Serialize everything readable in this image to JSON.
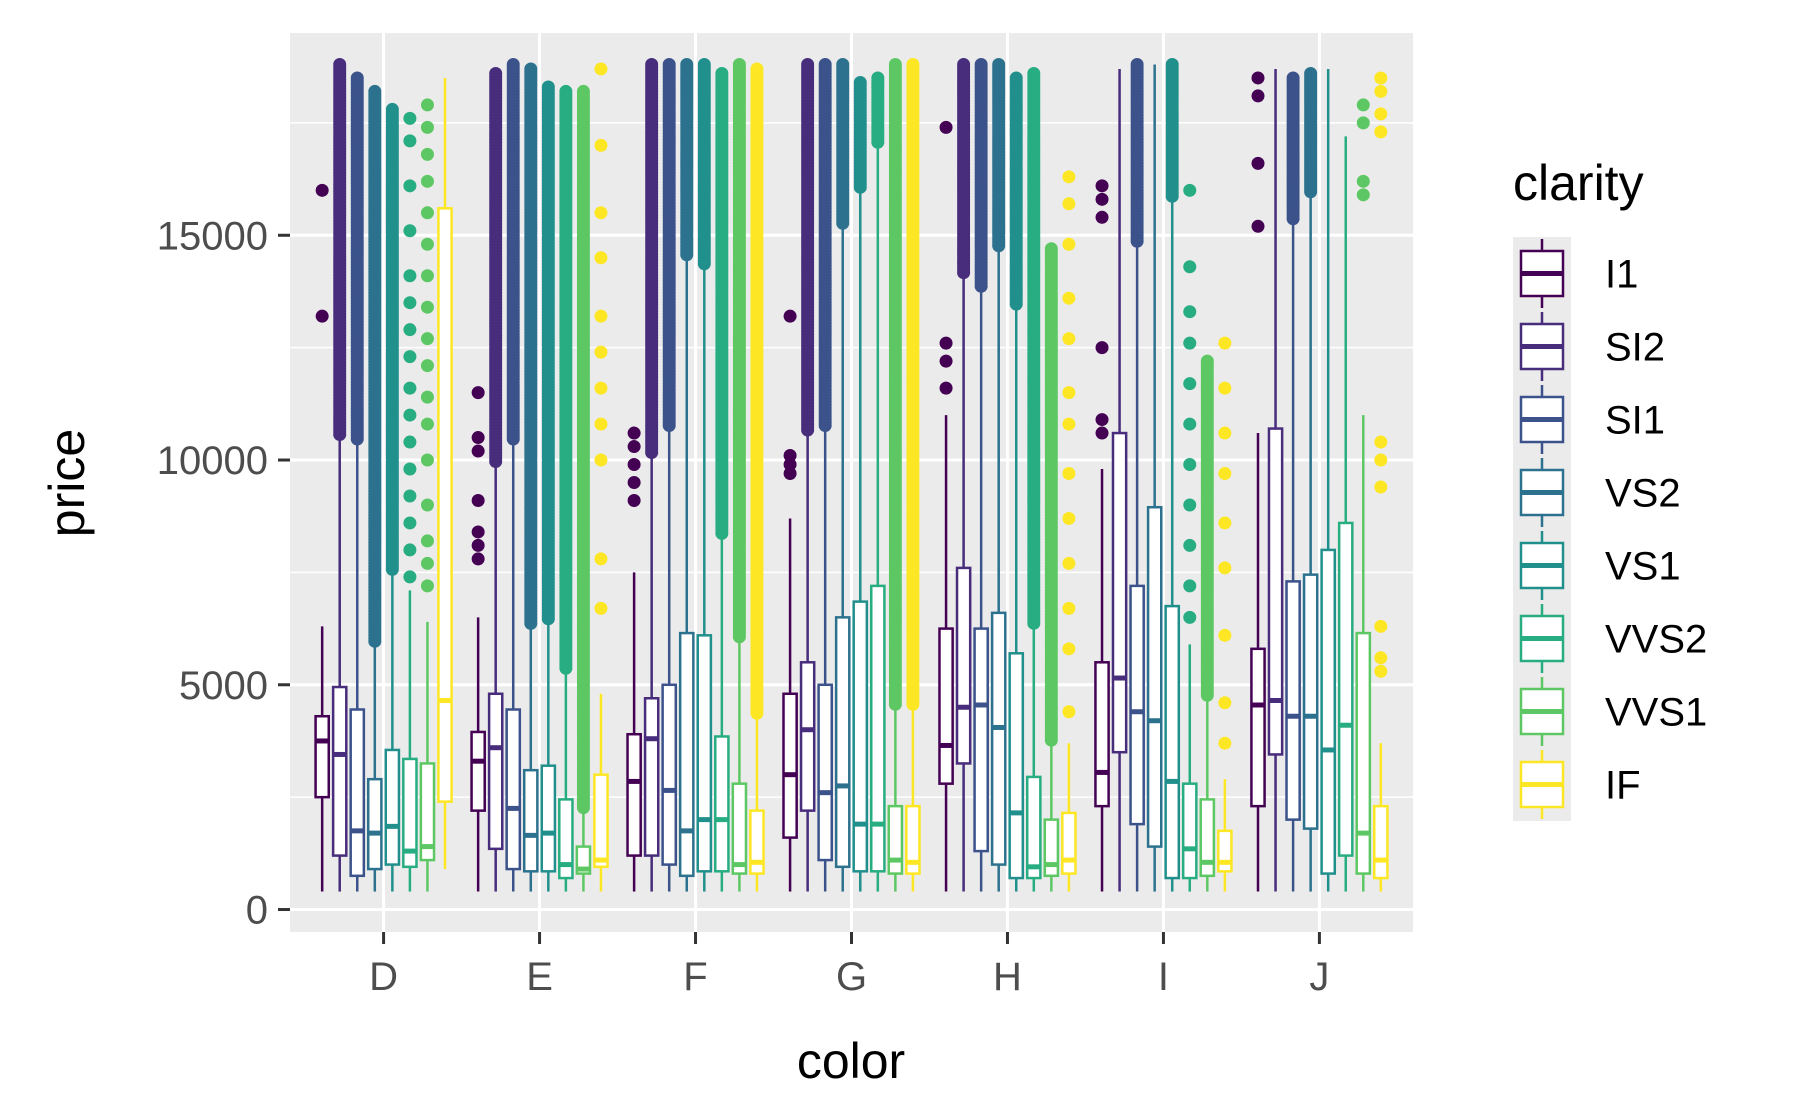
{
  "chart_data": {
    "type": "boxplot",
    "xlabel": "color",
    "ylabel": "price",
    "ylim": [
      -500,
      19500
    ],
    "yticks": [
      0,
      5000,
      10000,
      15000
    ],
    "grid": true,
    "legend": {
      "title": "clarity",
      "placement": "right"
    },
    "categories": [
      "D",
      "E",
      "F",
      "G",
      "H",
      "I",
      "J"
    ],
    "series": [
      {
        "name": "I1",
        "color": "#440154",
        "boxes": [
          {
            "q1": 2500,
            "med": 3750,
            "q3": 4300,
            "lo": 400,
            "hi": 6300,
            "out": [
              13200,
              16000
            ]
          },
          {
            "q1": 2200,
            "med": 3300,
            "q3": 3950,
            "lo": 400,
            "hi": 6500,
            "out": [
              7800,
              8100,
              8400,
              9100,
              10200,
              10500,
              11500
            ]
          },
          {
            "q1": 1200,
            "med": 2850,
            "q3": 3900,
            "lo": 400,
            "hi": 7500,
            "out": [
              9100,
              9500,
              9900,
              10300,
              10600
            ]
          },
          {
            "q1": 1600,
            "med": 3000,
            "q3": 4800,
            "lo": 400,
            "hi": 8700,
            "out": [
              9700,
              9900,
              10100,
              13200
            ]
          },
          {
            "q1": 2800,
            "med": 3650,
            "q3": 6250,
            "lo": 400,
            "hi": 11000,
            "out": [
              11600,
              12200,
              12600,
              17400
            ]
          },
          {
            "q1": 2300,
            "med": 3050,
            "q3": 5500,
            "lo": 400,
            "hi": 9800,
            "out": [
              10600,
              10900,
              12500,
              15400,
              15800,
              16100
            ]
          },
          {
            "q1": 2300,
            "med": 4550,
            "q3": 5800,
            "lo": 400,
            "hi": 10600,
            "out": [
              15200,
              16600,
              18100,
              18500
            ]
          }
        ]
      },
      {
        "name": "SI2",
        "color": "#472D7B",
        "boxes": [
          {
            "q1": 1200,
            "med": 3450,
            "q3": 4950,
            "lo": 400,
            "hi": 10500,
            "out_range": [
              10500,
              18800
            ]
          },
          {
            "q1": 1350,
            "med": 3600,
            "q3": 4800,
            "lo": 400,
            "hi": 9900,
            "out_range": [
              9900,
              18600
            ]
          },
          {
            "q1": 1200,
            "med": 3800,
            "q3": 4700,
            "lo": 400,
            "hi": 10100,
            "out_range": [
              10100,
              18800
            ]
          },
          {
            "q1": 2200,
            "med": 4000,
            "q3": 5500,
            "lo": 400,
            "hi": 10600,
            "out_range": [
              10600,
              18800
            ]
          },
          {
            "q1": 3250,
            "med": 4500,
            "q3": 7600,
            "lo": 400,
            "hi": 14100,
            "out_range": [
              14100,
              18800
            ]
          },
          {
            "q1": 3500,
            "med": 5150,
            "q3": 10600,
            "lo": 400,
            "hi": 18700,
            "out": []
          },
          {
            "q1": 3450,
            "med": 4650,
            "q3": 10700,
            "lo": 400,
            "hi": 18700,
            "out": []
          }
        ]
      },
      {
        "name": "SI1",
        "color": "#3B528B",
        "boxes": [
          {
            "q1": 750,
            "med": 1750,
            "q3": 4450,
            "lo": 400,
            "hi": 10400,
            "out_range": [
              10400,
              18500
            ]
          },
          {
            "q1": 900,
            "med": 2250,
            "q3": 4450,
            "lo": 400,
            "hi": 10400,
            "out_range": [
              10400,
              18800
            ]
          },
          {
            "q1": 1000,
            "med": 2650,
            "q3": 5000,
            "lo": 400,
            "hi": 10700,
            "out_range": [
              10700,
              18800
            ]
          },
          {
            "q1": 1100,
            "med": 2600,
            "q3": 5000,
            "lo": 400,
            "hi": 10700,
            "out_range": [
              10700,
              18800
            ]
          },
          {
            "q1": 1300,
            "med": 4550,
            "q3": 6250,
            "lo": 400,
            "hi": 13800,
            "out_range": [
              13800,
              18800
            ]
          },
          {
            "q1": 1900,
            "med": 4400,
            "q3": 7200,
            "lo": 400,
            "hi": 14800,
            "out_range": [
              14800,
              18800
            ]
          },
          {
            "q1": 2000,
            "med": 4300,
            "q3": 7300,
            "lo": 400,
            "hi": 15300,
            "out_range": [
              15300,
              18500
            ]
          }
        ]
      },
      {
        "name": "VS2",
        "color": "#2C728E",
        "boxes": [
          {
            "q1": 900,
            "med": 1700,
            "q3": 2900,
            "lo": 400,
            "hi": 5900,
            "out_range": [
              5900,
              18200
            ]
          },
          {
            "q1": 850,
            "med": 1650,
            "q3": 3100,
            "lo": 400,
            "hi": 6300,
            "out_range": [
              6300,
              18700
            ]
          },
          {
            "q1": 750,
            "med": 1750,
            "q3": 6150,
            "lo": 400,
            "hi": 14500,
            "out_range": [
              14500,
              18800
            ]
          },
          {
            "q1": 950,
            "med": 2750,
            "q3": 6500,
            "lo": 400,
            "hi": 15200,
            "out_range": [
              15200,
              18800
            ]
          },
          {
            "q1": 1000,
            "med": 4050,
            "q3": 6600,
            "lo": 400,
            "hi": 14700,
            "out_range": [
              14700,
              18800
            ]
          },
          {
            "q1": 1400,
            "med": 4200,
            "q3": 8950,
            "lo": 400,
            "hi": 18800,
            "out": []
          },
          {
            "q1": 1800,
            "med": 4300,
            "q3": 7450,
            "lo": 400,
            "hi": 15900,
            "out_range": [
              15900,
              18600
            ]
          }
        ]
      },
      {
        "name": "VS1",
        "color": "#21908C",
        "boxes": [
          {
            "q1": 1000,
            "med": 1850,
            "q3": 3550,
            "lo": 400,
            "hi": 7500,
            "out_range": [
              7500,
              17800
            ]
          },
          {
            "q1": 850,
            "med": 1700,
            "q3": 3200,
            "lo": 400,
            "hi": 6400,
            "out_range": [
              6400,
              18300
            ]
          },
          {
            "q1": 850,
            "med": 2000,
            "q3": 6100,
            "lo": 400,
            "hi": 14300,
            "out_range": [
              14300,
              18800
            ]
          },
          {
            "q1": 850,
            "med": 1900,
            "q3": 6850,
            "lo": 400,
            "hi": 16000,
            "out_range": [
              16000,
              18400
            ]
          },
          {
            "q1": 700,
            "med": 2150,
            "q3": 5700,
            "lo": 400,
            "hi": 13400,
            "out_range": [
              13400,
              18500
            ]
          },
          {
            "q1": 700,
            "med": 2850,
            "q3": 6750,
            "lo": 400,
            "hi": 15800,
            "out_range": [
              15800,
              18800
            ]
          },
          {
            "q1": 800,
            "med": 3550,
            "q3": 8000,
            "lo": 400,
            "hi": 18700,
            "out": []
          }
        ]
      },
      {
        "name": "VVS2",
        "color": "#27AD81",
        "boxes": [
          {
            "q1": 950,
            "med": 1300,
            "q3": 3350,
            "lo": 400,
            "hi": 7100,
            "out": [
              7400,
              8000,
              8600,
              9200,
              9800,
              10400,
              11000,
              11600,
              12300,
              12900,
              13500,
              14100,
              15100,
              16100,
              17100,
              17600
            ]
          },
          {
            "q1": 700,
            "med": 1000,
            "q3": 2450,
            "lo": 400,
            "hi": 5300,
            "out_range": [
              5300,
              18200
            ]
          },
          {
            "q1": 850,
            "med": 2000,
            "q3": 3850,
            "lo": 400,
            "hi": 8300,
            "out_range": [
              8300,
              18600
            ]
          },
          {
            "q1": 850,
            "med": 1900,
            "q3": 7200,
            "lo": 400,
            "hi": 17000,
            "out_range": [
              17000,
              18500
            ]
          },
          {
            "q1": 700,
            "med": 950,
            "q3": 2950,
            "lo": 400,
            "hi": 6300,
            "out_range": [
              6300,
              18600
            ]
          },
          {
            "q1": 700,
            "med": 1350,
            "q3": 2800,
            "lo": 400,
            "hi": 5900,
            "out": [
              6500,
              7200,
              8100,
              9000,
              9900,
              10800,
              11700,
              12600,
              13300,
              14300,
              16000
            ]
          },
          {
            "q1": 1200,
            "med": 4100,
            "q3": 8600,
            "lo": 400,
            "hi": 17200,
            "out": []
          }
        ]
      },
      {
        "name": "VVS1",
        "color": "#5DC863",
        "boxes": [
          {
            "q1": 1100,
            "med": 1400,
            "q3": 3250,
            "lo": 400,
            "hi": 6400,
            "out": [
              7200,
              7700,
              8200,
              9000,
              10000,
              10800,
              11400,
              12100,
              12700,
              13400,
              14100,
              14800,
              15500,
              16200,
              16800,
              17400,
              17900
            ]
          },
          {
            "q1": 800,
            "med": 900,
            "q3": 1400,
            "lo": 400,
            "hi": 2200,
            "out_range": [
              2200,
              18200
            ]
          },
          {
            "q1": 800,
            "med": 1000,
            "q3": 2800,
            "lo": 400,
            "hi": 6000,
            "out_range": [
              6000,
              18800
            ]
          },
          {
            "q1": 800,
            "med": 1100,
            "q3": 2300,
            "lo": 400,
            "hi": 4500,
            "out_range": [
              4500,
              18800
            ]
          },
          {
            "q1": 750,
            "med": 1000,
            "q3": 2000,
            "lo": 400,
            "hi": 3700,
            "out_range": [
              3700,
              14700
            ]
          },
          {
            "q1": 750,
            "med": 1050,
            "q3": 2450,
            "lo": 400,
            "hi": 4700,
            "out_range": [
              4700,
              12200
            ]
          },
          {
            "q1": 800,
            "med": 1700,
            "q3": 6150,
            "lo": 400,
            "hi": 11000,
            "out": [
              15900,
              16200,
              17500,
              17900
            ]
          }
        ]
      },
      {
        "name": "IF",
        "color": "#FDE725",
        "boxes": [
          {
            "q1": 2400,
            "med": 4650,
            "q3": 15600,
            "lo": 900,
            "hi": 18500,
            "out": []
          },
          {
            "q1": 950,
            "med": 1100,
            "q3": 3000,
            "lo": 400,
            "hi": 4800,
            "out": [
              6700,
              7800,
              10000,
              10800,
              11600,
              12400,
              13200,
              14500,
              15500,
              17000,
              18700
            ]
          },
          {
            "q1": 800,
            "med": 1050,
            "q3": 2200,
            "lo": 400,
            "hi": 4300,
            "out_range": [
              4300,
              18700
            ]
          },
          {
            "q1": 800,
            "med": 1050,
            "q3": 2300,
            "lo": 400,
            "hi": 4500,
            "out_range": [
              4500,
              18800
            ]
          },
          {
            "q1": 800,
            "med": 1100,
            "q3": 2150,
            "lo": 400,
            "hi": 3700,
            "out": [
              4400,
              5800,
              6700,
              7700,
              8700,
              9700,
              10800,
              11500,
              12700,
              13600,
              14800,
              15700,
              16300
            ]
          },
          {
            "q1": 850,
            "med": 1050,
            "q3": 1750,
            "lo": 400,
            "hi": 2900,
            "out": [
              3700,
              4600,
              6100,
              7600,
              8600,
              9700,
              10600,
              11600,
              12600
            ]
          },
          {
            "q1": 700,
            "med": 1100,
            "q3": 2300,
            "lo": 400,
            "hi": 3700,
            "out": [
              5300,
              5600,
              6300,
              9400,
              10000,
              10400,
              17300,
              17700,
              18200,
              18500
            ]
          }
        ]
      }
    ]
  }
}
